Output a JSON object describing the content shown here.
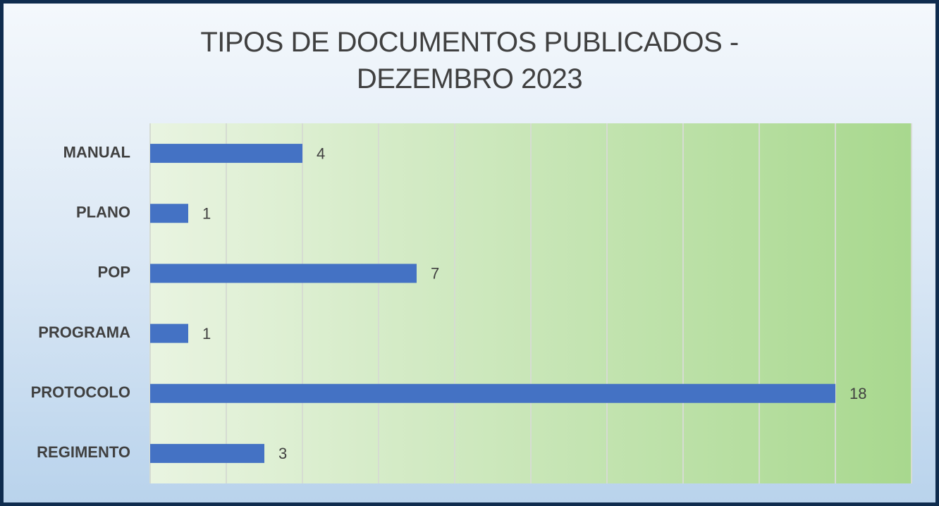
{
  "chart_data": {
    "type": "barh",
    "title": "TIPOS DE DOCUMENTOS PUBLICADOS - DEZEMBRO 2023",
    "categories": [
      "MANUAL",
      "PLANO",
      "POP",
      "PROGRAMA",
      "PROTOCOLO",
      "REGIMENTO"
    ],
    "values": [
      4,
      1,
      7,
      1,
      18,
      3
    ],
    "color": "#4472c4",
    "xlim": [
      0,
      20
    ],
    "xticks": [
      0,
      2,
      4,
      6,
      8,
      10,
      12,
      14,
      16,
      18,
      20
    ],
    "grid": true
  }
}
